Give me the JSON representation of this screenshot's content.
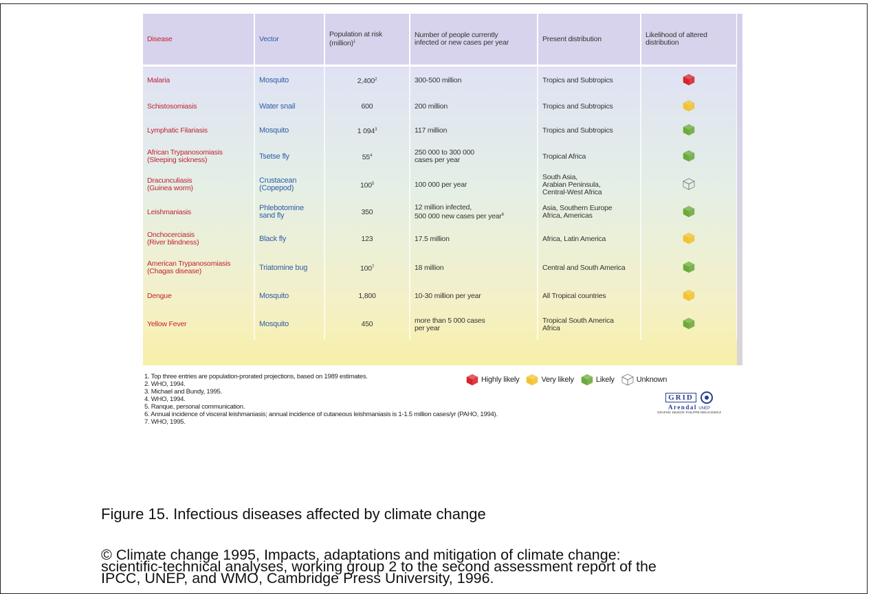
{
  "table": {
    "headers": [
      {
        "text": "Disease"
      },
      {
        "text": "Vector"
      },
      {
        "text": "Population at risk\n(million)",
        "sup": "1"
      },
      {
        "text": "Number of people currently\ninfected or new cases per year"
      },
      {
        "text": "Present distribution"
      },
      {
        "text": "Likelihood of altered\ndistribution"
      }
    ],
    "rows": [
      {
        "disease": "Malaria",
        "vector": "Mosquito",
        "population": "2,400",
        "population_sup": "2",
        "cases": "300-500 million",
        "distribution": "Tropics and Subtropics",
        "icon_color": "#d8232a"
      },
      {
        "disease": "Schistosomiasis",
        "vector": "Water snail",
        "population": "600",
        "cases": "200 million",
        "distribution": "Tropics and Subtropics",
        "icon_color": "#f2c230"
      },
      {
        "disease": "Lymphatic Filariasis",
        "vector": "Mosquito",
        "population": "1 094",
        "population_sup": "3",
        "cases": "117 million",
        "distribution": "Tropics and Subtropics",
        "icon_color": "#6aaa3a"
      },
      {
        "disease": "African Trypanosomiasis\n(Sleeping sickness)",
        "vector": "Tsetse fly",
        "population": "55",
        "population_sup": "4",
        "cases": "250 000 to 300 000\ncases per year",
        "distribution": "Tropical Africa",
        "icon_color": "#6aaa3a"
      },
      {
        "disease": "Dracunculiasis\n(Guinea worm)",
        "vector": "Crustacean\n(Copepod)",
        "population": "100",
        "population_sup": "5",
        "cases": "100 000 per year",
        "distribution": "South Asia,\nArabian Peninsula,\nCentral-West Africa",
        "icon_color": "none"
      },
      {
        "disease": "Leishmaniasis",
        "vector": "Phlebotomine\nsand fly",
        "population": "350",
        "cases": "12 million infected,\n500 000 new cases per year",
        "cases_sup": "6",
        "distribution": "Asia, Southern Europe\nAfrica, Americas",
        "icon_color": "#6aaa3a"
      },
      {
        "disease": "Onchocerciasis\n(River blindness)",
        "vector": "Black fly",
        "population": "123",
        "cases": "17.5 million",
        "distribution": "Africa, Latin America",
        "icon_color": "#f2c230"
      },
      {
        "disease": "American Trypanosomiasis\n(Chagas disease)",
        "vector": "Triatomine bug",
        "population": "100",
        "population_sup": "7",
        "cases": "18 million",
        "distribution": "Central and South America",
        "icon_color": "#6aaa3a"
      },
      {
        "disease": "Dengue",
        "vector": "Mosquito",
        "population": "1,800",
        "cases": "10-30 million per year",
        "distribution": "All Tropical countries",
        "icon_color": "#f2c230"
      },
      {
        "disease": "Yellow Fever",
        "vector": "Mosquito",
        "population": "450",
        "cases": "more than 5 000 cases\nper year",
        "distribution": "Tropical South America\nAfrica",
        "icon_color": "#6aaa3a"
      }
    ]
  },
  "footnotes": [
    "1. Top three entries are population-prorated projections, based on 1989 estimates.",
    "2. WHO, 1994.",
    "3. Michael and Bundy, 1995.",
    "4. WHO, 1994.",
    "5. Ranque, personal communication.",
    "6. Annual incidence of visceral leishmaniasis; annual incidence of cutaneous leishmaniasis is 1-1.5 million cases/yr (PAHO, 1994).",
    "7. WHO, 1995."
  ],
  "legend": [
    {
      "label": "Highly likely",
      "color": "#d8232a"
    },
    {
      "label": "Very likely",
      "color": "#f2c230"
    },
    {
      "label": "Likely",
      "color": "#6aaa3a"
    },
    {
      "label": "Unknown",
      "color": "none"
    }
  ],
  "logo": {
    "grid": "GRID",
    "arendal": "Arendal",
    "unep": "UNEP",
    "credit": "GRAPHIC DESIGN: PHILIPPE REKACEWICZ"
  },
  "caption": "Figure 15. Infectious diseases affected by climate change",
  "copyright": [
    "© Climate change 1995, Impacts, adaptations and mitigation of climate change:",
    "scientific-technical analyses, working group 2 to the second assessment report of the",
    "IPCC, UNEP, and WMO, Cambridge Press University, 1996."
  ]
}
